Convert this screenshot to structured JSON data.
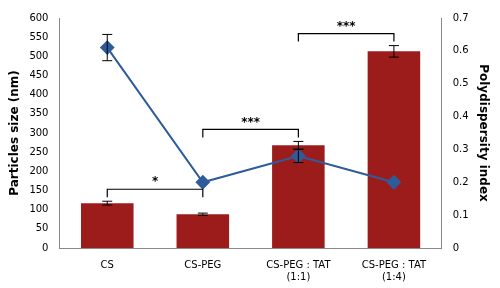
{
  "chart_data": {
    "type": "bar",
    "categories": [
      "CS",
      "CS-PEG",
      "CS-PEG : TAT (1:1)",
      "CS-PEG : TAT (1:4)"
    ],
    "y_label": "Particles size (nm)",
    "y2_label": "Polydispersity index",
    "ylim": [
      0,
      600
    ],
    "yticks": [
      0,
      50,
      100,
      150,
      200,
      250,
      300,
      350,
      400,
      450,
      500,
      550,
      600
    ],
    "y2lim": [
      0,
      0.7
    ],
    "y2ticks": [
      0,
      0.1,
      0.2,
      0.3,
      0.4,
      0.5,
      0.6,
      0.7
    ],
    "grid": false,
    "series": [
      {
        "type": "bar",
        "color": "#9c1c1c",
        "values": [
          117,
          88,
          268,
          513
        ],
        "errors": [
          5,
          3,
          10,
          15
        ]
      },
      {
        "type": "line",
        "axis": "y2",
        "color": "#2e5c9a",
        "marker": "diamond",
        "values": [
          0.61,
          0.2,
          0.28,
          0.2
        ],
        "errors": [
          0.04,
          null,
          0.02,
          null
        ]
      }
    ],
    "annotations": [
      {
        "text": "*",
        "between": [
          0,
          1
        ]
      },
      {
        "text": "***",
        "between": [
          1,
          2
        ]
      },
      {
        "text": "***",
        "between": [
          2,
          3
        ]
      }
    ]
  }
}
